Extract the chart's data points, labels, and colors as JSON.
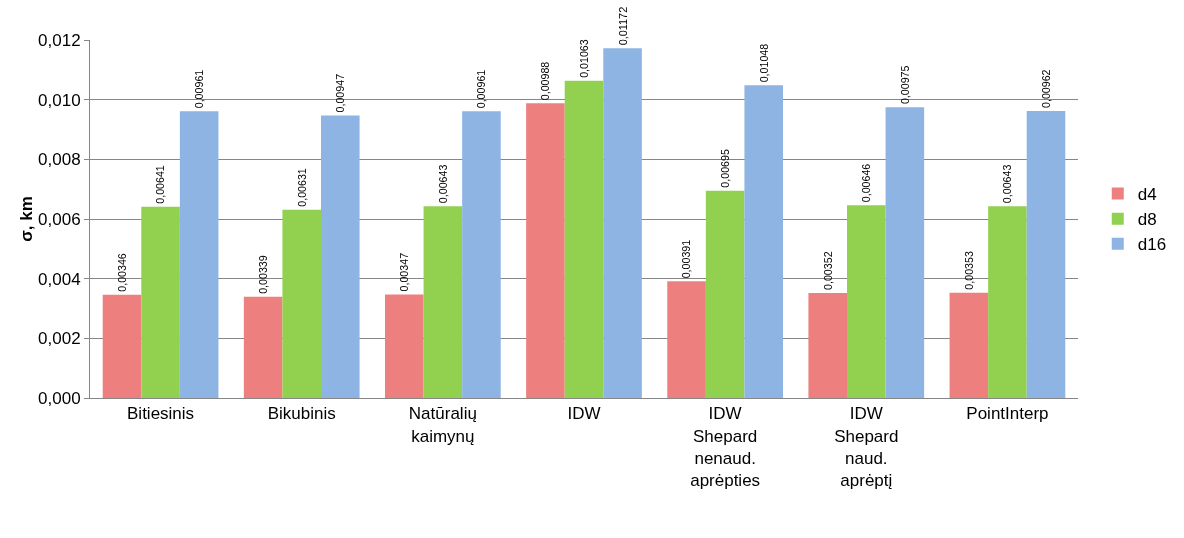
{
  "chart_data": {
    "type": "bar",
    "ylabel": "σ, km",
    "categories": [
      "Bitiesinis",
      "Bikubinis",
      "Natūralių\nkaimynų",
      "IDW",
      "IDW\nShepard\nnenaud.\naprėpties",
      "IDW\nShepard\nnaud.\naprėptį",
      "PointInterp"
    ],
    "series": [
      {
        "name": "d4",
        "color": "#ee7f7f",
        "values": [
          0.00346,
          0.00339,
          0.00347,
          0.00988,
          0.00391,
          0.00352,
          0.00353
        ],
        "value_labels": [
          "0,00346",
          "0,00339",
          "0,00347",
          "0,00988",
          "0,00391",
          "0,00352",
          "0,00353"
        ]
      },
      {
        "name": "d8",
        "color": "#92d050",
        "values": [
          0.00641,
          0.00631,
          0.00643,
          0.01063,
          0.00695,
          0.00646,
          0.00643
        ],
        "value_labels": [
          "0,00641",
          "0,00631",
          "0,00643",
          "0,01063",
          "0,00695",
          "0,00646",
          "0,00643"
        ]
      },
      {
        "name": "d16",
        "color": "#8db4e2",
        "values": [
          0.00961,
          0.00947,
          0.00961,
          0.01172,
          0.01048,
          0.00975,
          0.00962
        ],
        "value_labels": [
          "0,00961",
          "0,00947",
          "0,00961",
          "0,01172",
          "0,01048",
          "0,00975",
          "0,00962"
        ]
      }
    ],
    "ylim": [
      0,
      0.012
    ],
    "yticks": [
      {
        "value": 0,
        "label": "0,000"
      },
      {
        "value": 0.002,
        "label": "0,002"
      },
      {
        "value": 0.004,
        "label": "0,004"
      },
      {
        "value": 0.006,
        "label": "0,006"
      },
      {
        "value": 0.008,
        "label": "0,008"
      },
      {
        "value": 0.01,
        "label": "0,010"
      },
      {
        "value": 0.012,
        "label": "0,012"
      }
    ],
    "grid": "y",
    "legend": "right"
  }
}
